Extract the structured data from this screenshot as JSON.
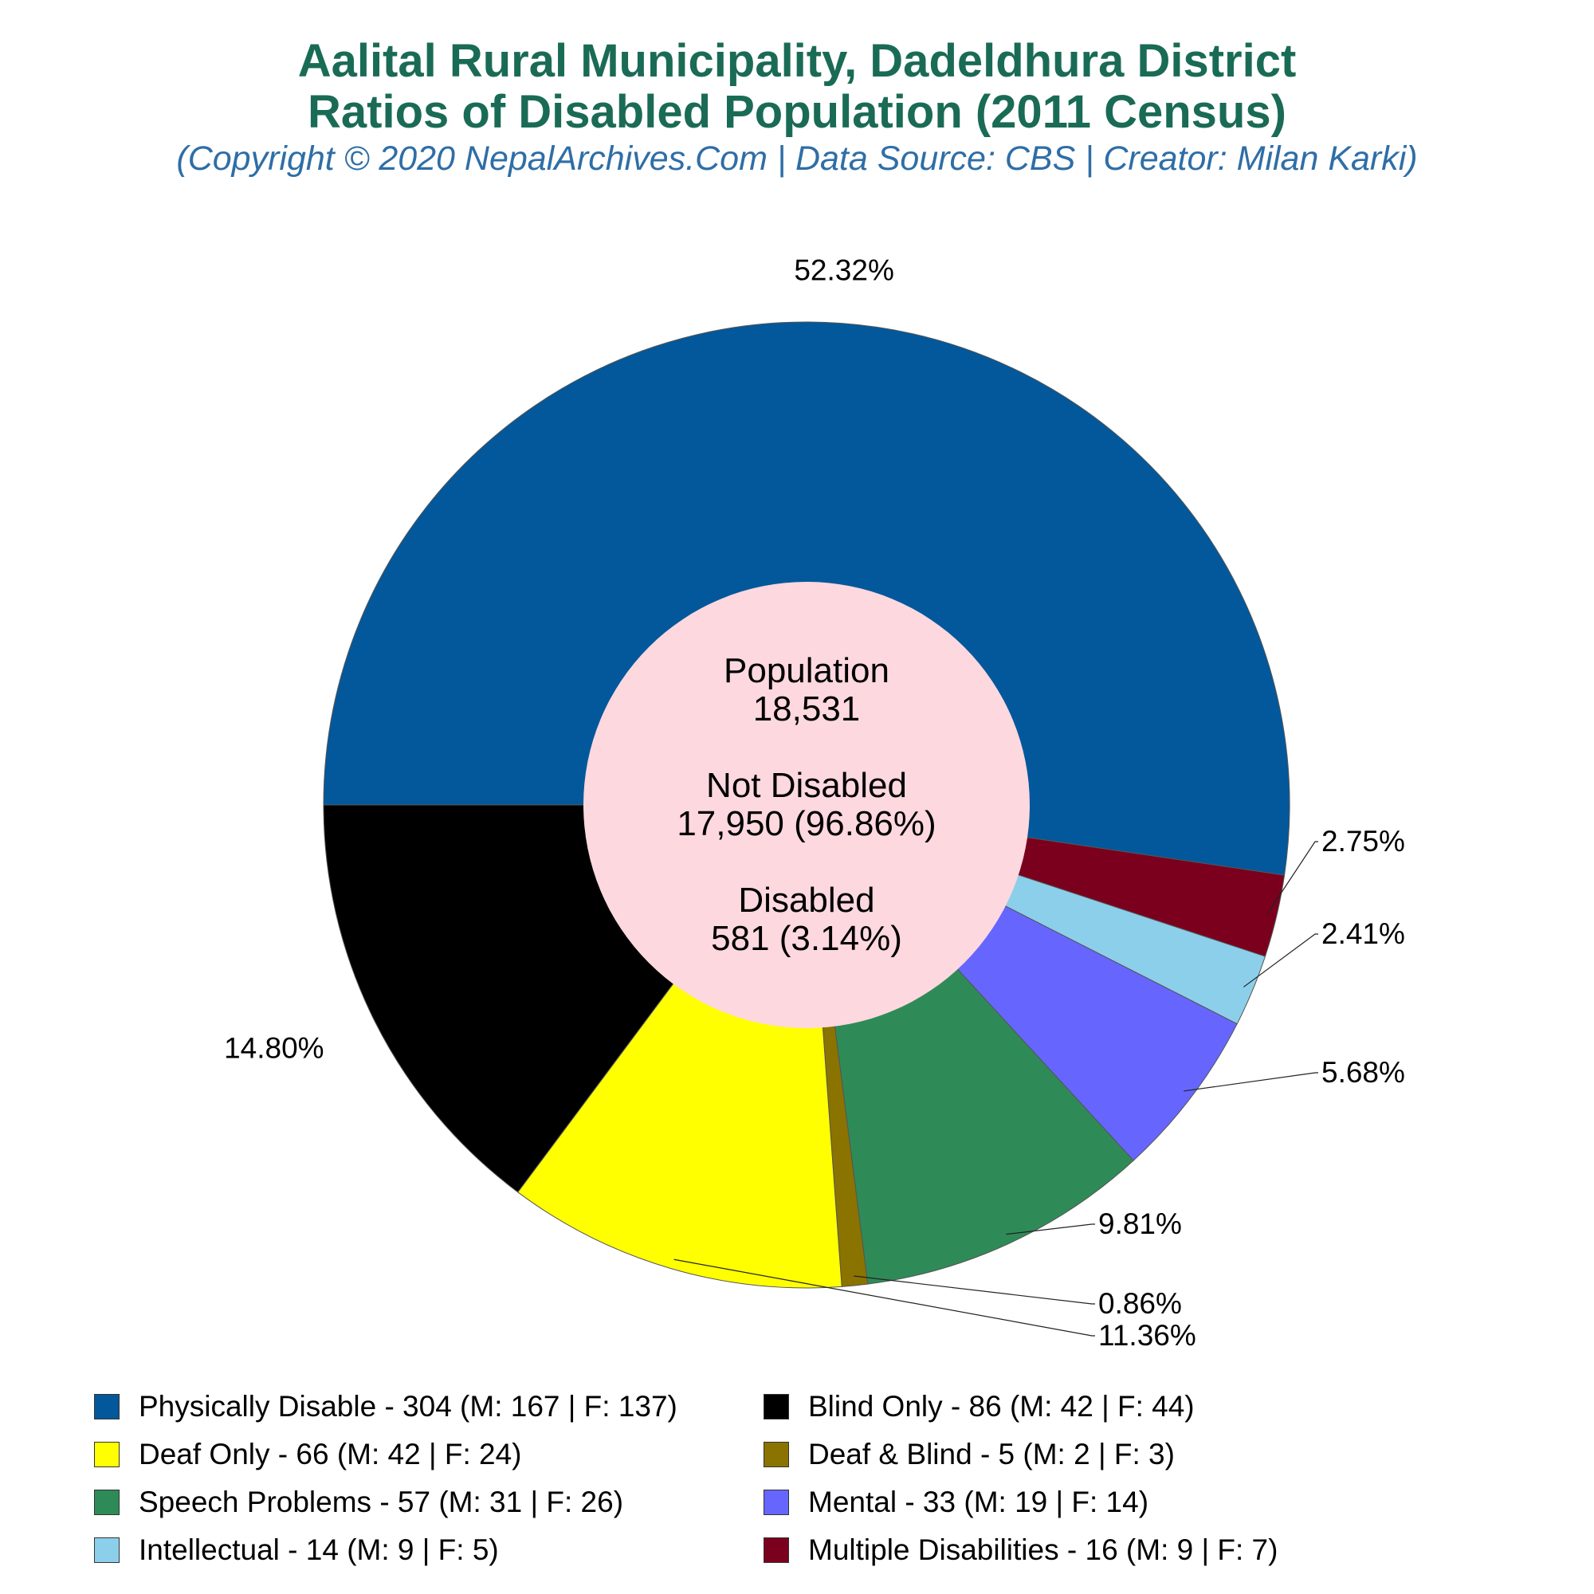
{
  "chart_data": {
    "type": "pie",
    "title": "Aalital Rural Municipality, Dadeldhura District",
    "subtitle": "Ratios of Disabled Population (2011 Census)",
    "credit": "(Copyright © 2020 NepalArchives.Com | Data Source: CBS | Creator: Milan Karki)",
    "center_text": [
      "Population",
      "18,531",
      "",
      "Not Disabled",
      "17,950 (96.86%)",
      "",
      "Disabled",
      "581 (3.14%)"
    ],
    "slices": [
      {
        "name": "Physically Disable",
        "value": 304,
        "male": 167,
        "female": 137,
        "percent_label": "52.32%",
        "color": "#02589b",
        "legend": "Physically Disable - 304 (M: 167 | F: 137)"
      },
      {
        "name": "Multiple Disabilities",
        "value": 16,
        "male": 9,
        "female": 7,
        "percent_label": "2.75%",
        "color": "#7b001e",
        "legend": "Multiple Disabilities - 16 (M: 9 | F: 7)"
      },
      {
        "name": "Intellectual",
        "value": 14,
        "male": 9,
        "female": 5,
        "percent_label": "2.41%",
        "color": "#8ccfea",
        "legend": "Intellectual - 14 (M: 9 | F: 5)"
      },
      {
        "name": "Mental",
        "value": 33,
        "male": 19,
        "female": 14,
        "percent_label": "5.68%",
        "color": "#6666ff",
        "legend": "Mental - 33 (M: 19 | F: 14)"
      },
      {
        "name": "Speech Problems",
        "value": 57,
        "male": 31,
        "female": 26,
        "percent_label": "9.81%",
        "color": "#2e8b57",
        "legend": "Speech Problems - 57 (M: 31 | F: 26)"
      },
      {
        "name": "Deaf & Blind",
        "value": 5,
        "male": 2,
        "female": 3,
        "percent_label": "0.86%",
        "color": "#8b7300",
        "legend": "Deaf & Blind - 5 (M: 2 | F: 3)"
      },
      {
        "name": "Deaf Only",
        "value": 66,
        "male": 42,
        "female": 24,
        "percent_label": "11.36%",
        "color": "#ffff00",
        "legend": "Deaf Only - 66 (M: 42 | F: 24)"
      },
      {
        "name": "Blind Only",
        "value": 86,
        "male": 42,
        "female": 44,
        "percent_label": "14.80%",
        "color": "#000000",
        "legend": "Blind Only - 86 (M: 42 | F: 44)"
      }
    ],
    "legend_order": [
      0,
      7,
      6,
      5,
      4,
      3,
      2,
      1
    ],
    "center_fill": "#fdd8df",
    "legend_position": "bottom"
  }
}
